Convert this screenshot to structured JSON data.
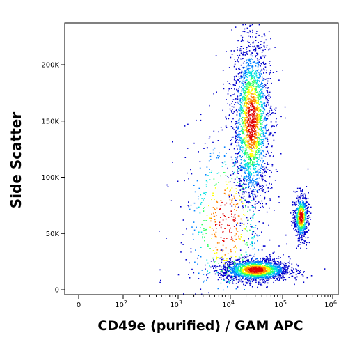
{
  "chart_data": {
    "type": "scatter",
    "subtype": "flow-cytometry-density-plot",
    "xlabel": "CD49e (purified) / GAM APC",
    "ylabel": "Side Scatter",
    "x_scale": "biexponential-log",
    "x_ticks": [
      {
        "value": 0,
        "label": "0"
      },
      {
        "value": 100,
        "label": "10",
        "exp": "2"
      },
      {
        "value": 1000,
        "label": "10",
        "exp": "3"
      },
      {
        "value": 10000,
        "label": "10",
        "exp": "4"
      },
      {
        "value": 100000,
        "label": "10",
        "exp": "5"
      },
      {
        "value": 1000000,
        "label": "10",
        "exp": "6"
      }
    ],
    "y_ticks": [
      {
        "value": 0,
        "label": "0"
      },
      {
        "value": 50000,
        "label": "50K"
      },
      {
        "value": 100000,
        "label": "100K"
      },
      {
        "value": 150000,
        "label": "150K"
      },
      {
        "value": 200000,
        "label": "200K"
      }
    ],
    "ylim": [
      -3000,
      235000
    ],
    "color_scale": [
      "#0000cc",
      "#0080ff",
      "#00e0e0",
      "#30ff60",
      "#ffff00",
      "#ff8000",
      "#e00000"
    ],
    "populations": [
      {
        "name": "",
        "x_center": 25000,
        "y_center": 150000,
        "x_spread_decades": 0.18,
        "y_spread": 38000,
        "weight": 0.42
      },
      {
        "name": "",
        "x_center": 230000,
        "y_center": 65000,
        "x_spread_decades": 0.07,
        "y_spread": 10000,
        "weight": 0.12
      },
      {
        "name": "",
        "x_center": 30000,
        "y_center": 18000,
        "x_spread_decades": 0.33,
        "y_spread": 5000,
        "weight": 0.34
      },
      {
        "name": "",
        "x_center": 8000,
        "y_center": 60000,
        "x_spread_decades": 0.45,
        "y_spread": 45000,
        "weight": 0.12
      }
    ]
  }
}
